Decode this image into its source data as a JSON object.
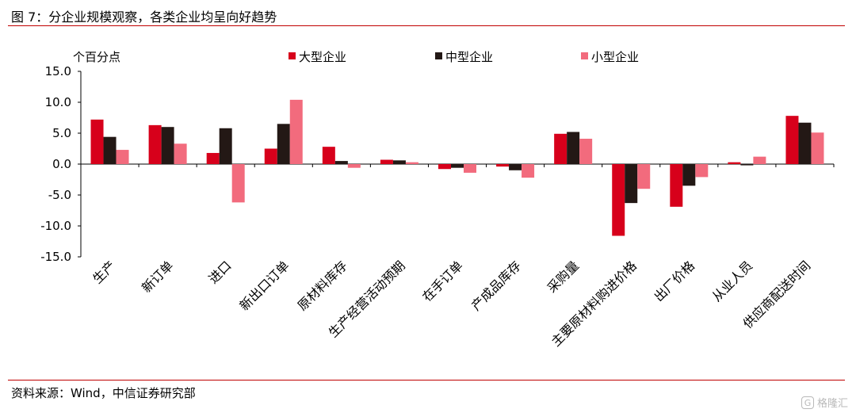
{
  "header": {
    "title": "图 7：分企业规模观察，各类企业均呈向好趋势"
  },
  "footer": {
    "source": "资料来源：Wind，中信证券研究部"
  },
  "watermark": {
    "text": "格隆汇",
    "icon": "G"
  },
  "chart_data": {
    "type": "bar",
    "ylabel": "个百分点",
    "ylim": [
      -15,
      15
    ],
    "yticks": [
      "15.0",
      "10.0",
      "5.0",
      "0.0",
      "-5.0",
      "-10.0",
      "-15.0"
    ],
    "legend_position": "top",
    "categories": [
      "生产",
      "新订单",
      "进口",
      "新出口订单",
      "原材料库存",
      "生产经营活动预期",
      "在手订单",
      "产成品库存",
      "采购量",
      "主要原材料购进价格",
      "出厂价格",
      "从业人员",
      "供应商配送时间"
    ],
    "series": [
      {
        "name": "大型企业",
        "color": "#d7001b",
        "values": [
          7.2,
          6.3,
          1.8,
          2.5,
          2.8,
          0.7,
          -0.8,
          -0.4,
          4.9,
          -11.6,
          -6.9,
          0.3,
          7.8
        ]
      },
      {
        "name": "中型企业",
        "color": "#231815",
        "values": [
          4.4,
          6.0,
          5.8,
          6.5,
          0.5,
          0.6,
          -0.6,
          -1.0,
          5.2,
          -6.3,
          -3.5,
          -0.2,
          6.7
        ]
      },
      {
        "name": "小型企业",
        "color": "#f26b7d",
        "values": [
          2.3,
          3.3,
          -6.2,
          10.4,
          -0.6,
          0.3,
          -1.4,
          -2.2,
          4.1,
          -4.0,
          -2.1,
          1.2,
          5.1
        ]
      }
    ]
  }
}
